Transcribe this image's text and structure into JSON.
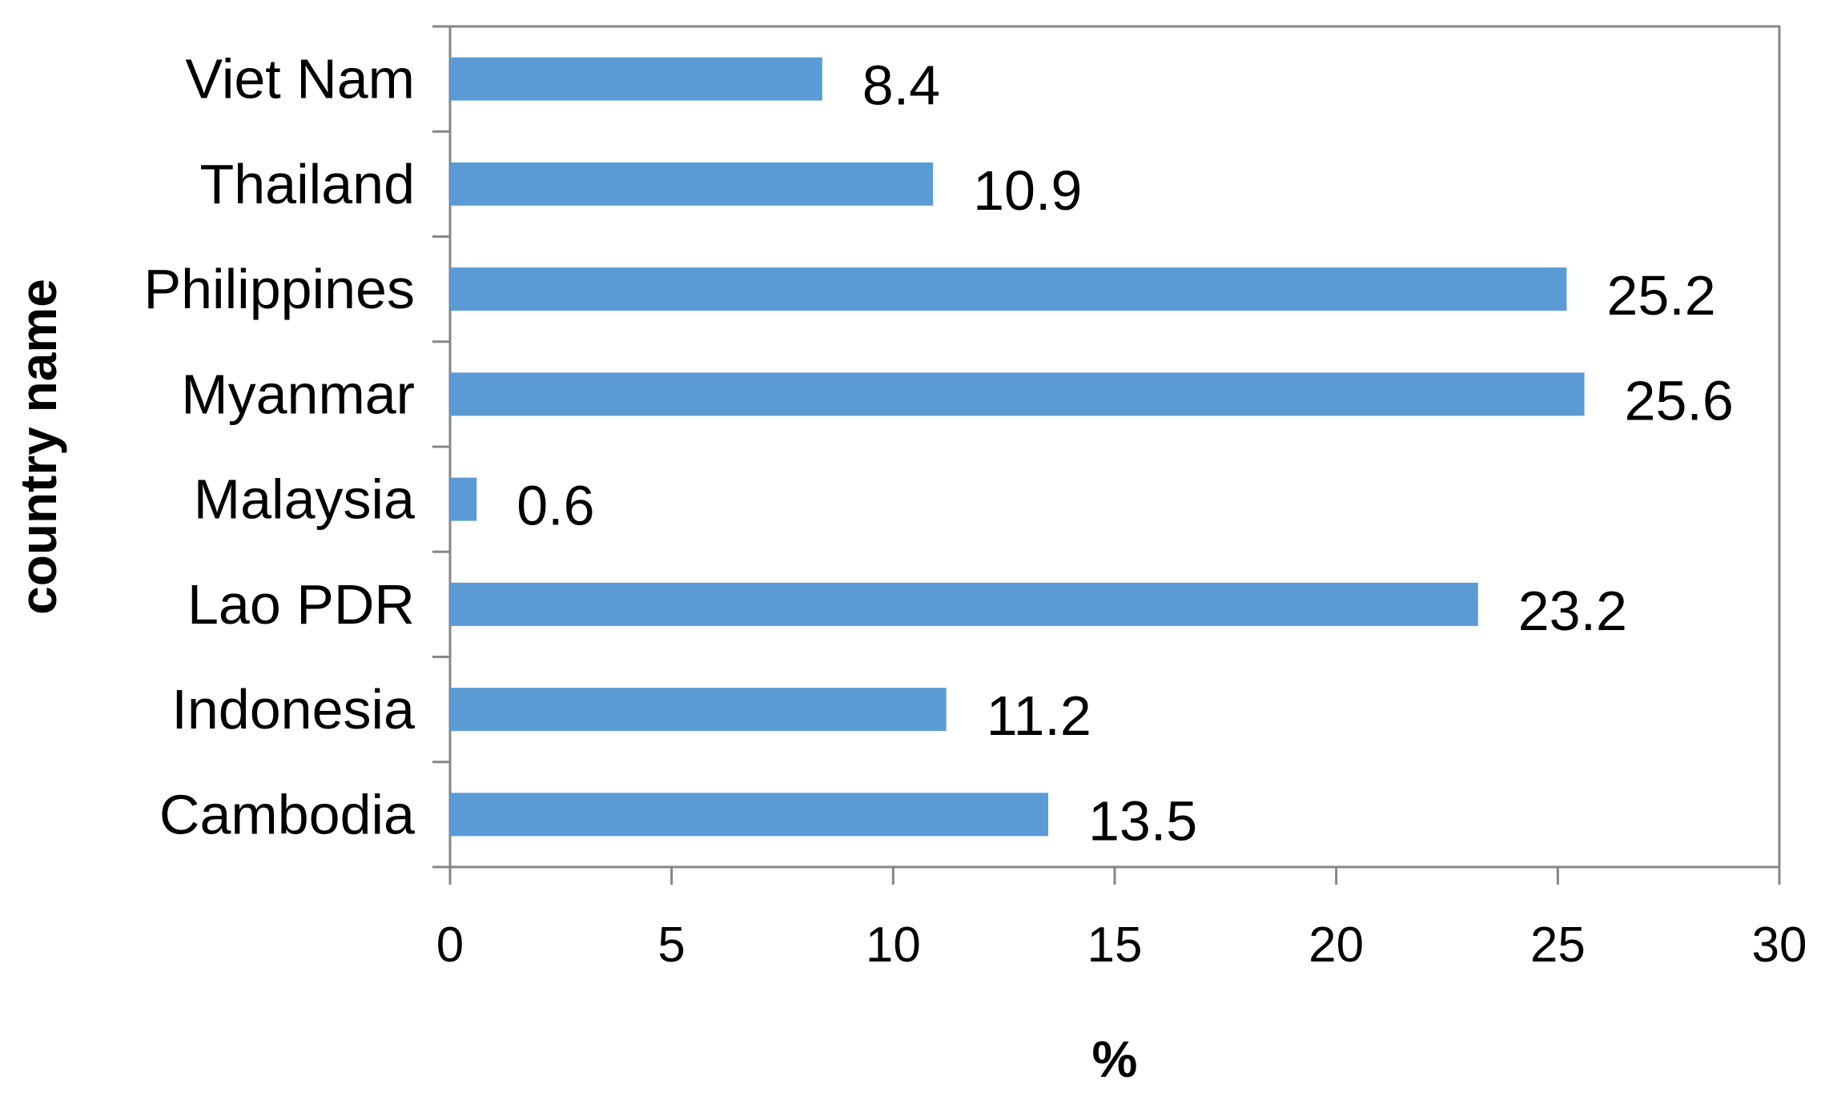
{
  "chart_data": {
    "type": "bar",
    "orientation": "horizontal",
    "categories": [
      "Viet Nam",
      "Thailand",
      "Philippines",
      "Myanmar",
      "Malaysia",
      "Lao PDR",
      "Indonesia",
      "Cambodia"
    ],
    "values": [
      8.4,
      10.9,
      25.2,
      25.6,
      0.6,
      23.2,
      11.2,
      13.5
    ],
    "data_labels": [
      "8.4",
      "10.9",
      "25.2",
      "25.6",
      "0.6",
      "23.2",
      "11.2",
      "13.5"
    ],
    "xlabel": "%",
    "ylabel": "country name",
    "xlim": [
      0,
      30
    ],
    "xticks": [
      "0",
      "5",
      "10",
      "15",
      "20",
      "25",
      "30"
    ],
    "grid": false,
    "colors": {
      "bar": "#5b9bd5",
      "axis": "#868686"
    }
  }
}
